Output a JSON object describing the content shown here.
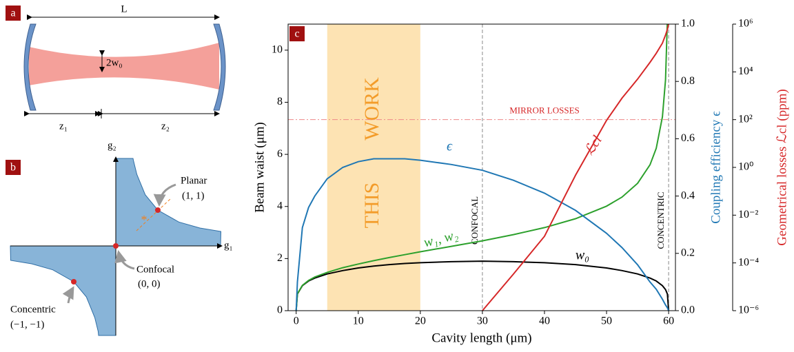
{
  "panel_a": {
    "tag": "a",
    "length_label": "L",
    "waist_label": "2w₀",
    "z1_label": "z₁",
    "z2_label": "z₂"
  },
  "panel_b": {
    "tag": "b",
    "g2_label": "g₂",
    "g1_label": "g₁",
    "planar": "Planar",
    "planar_coords": "(1, 1)",
    "confocal": "Confocal",
    "confocal_coords": "(0, 0)",
    "concentric": "Concentric",
    "concentric_coords": "(−1, −1)"
  },
  "chart_data": {
    "type": "line",
    "tag": "c",
    "xlabel": "Cavity length (μm)",
    "ylabel": "Beam waist (μm)",
    "y2label": "Coupling efficiency ϵ",
    "y3label": "Geometrical losses ℒcl (ppm)",
    "xlim": [
      -1.3,
      61.1
    ],
    "xticks": [
      0,
      10,
      20,
      30,
      40,
      50,
      60
    ],
    "ylim": [
      0,
      11
    ],
    "yticks": [
      0,
      2,
      4,
      6,
      8,
      10
    ],
    "y2lim": [
      0,
      1
    ],
    "y2ticks": [
      {
        "value": 0,
        "label": "0.0"
      },
      {
        "value": 0.2,
        "label": "0.2"
      },
      {
        "value": 0.4,
        "label": "0.4"
      },
      {
        "value": 0.6,
        "label": "0.6"
      },
      {
        "value": 0.8,
        "label": "0.8"
      },
      {
        "value": 1,
        "label": "1.0"
      }
    ],
    "y3lim": [
      1e-06,
      1000000.0
    ],
    "y3scale": "log",
    "y3ticks": [
      {
        "value": 1e-06,
        "label": "10⁻⁶"
      },
      {
        "value": 0.0001,
        "label": "10⁻⁴"
      },
      {
        "value": 0.01,
        "label": "10⁻²"
      },
      {
        "value": 1,
        "label": "10⁰"
      },
      {
        "value": 100,
        "label": "10²"
      },
      {
        "value": 10000,
        "label": "10⁴"
      },
      {
        "value": 1000000,
        "label": "10⁶"
      }
    ],
    "x": [
      0,
      0.2,
      1,
      2,
      3,
      5,
      7.5,
      10,
      12.5,
      15,
      17.5,
      20,
      25,
      30,
      35,
      40,
      45,
      50,
      52.5,
      55,
      57,
      58,
      59,
      59.5,
      59.8,
      60
    ],
    "series": [
      {
        "name": "w₀",
        "color": "#000000",
        "axis": "y",
        "values": [
          0,
          0.64,
          0.96,
          1.14,
          1.25,
          1.41,
          1.54,
          1.64,
          1.71,
          1.77,
          1.81,
          1.84,
          1.88,
          1.9,
          1.88,
          1.84,
          1.77,
          1.64,
          1.54,
          1.41,
          1.25,
          1.14,
          0.96,
          0.81,
          0.64,
          0
        ]
      },
      {
        "name": "w₁, w₂",
        "color": "#2ca02c",
        "axis": "y",
        "values": [
          0,
          0.65,
          0.97,
          1.16,
          1.29,
          1.47,
          1.65,
          1.79,
          1.92,
          2.04,
          2.15,
          2.26,
          2.47,
          2.68,
          2.92,
          3.19,
          3.53,
          4.01,
          4.36,
          4.89,
          5.6,
          6.23,
          7.44,
          8.86,
          11.16,
          null
        ]
      },
      {
        "name": "ϵ",
        "color": "#1f77b4",
        "axis": "y2",
        "values": [
          0,
          0.1,
          0.29,
          0.36,
          0.4,
          0.46,
          0.5,
          0.52,
          0.53,
          0.53,
          0.53,
          0.525,
          0.51,
          0.49,
          0.455,
          0.41,
          0.35,
          0.27,
          0.22,
          0.16,
          0.1,
          0.075,
          0.04,
          0.02,
          0.01,
          0
        ]
      },
      {
        "name": "ℒcl",
        "color": "#d62728",
        "axis": "y3",
        "values": [
          null,
          null,
          null,
          null,
          null,
          null,
          null,
          null,
          null,
          null,
          null,
          null,
          null,
          1e-06,
          3.4e-05,
          0.0013,
          0.47,
          93,
          800,
          5000,
          25000,
          60000,
          160000,
          350000,
          600000,
          1000000
        ]
      }
    ],
    "shaded_region": [
      5,
      20
    ],
    "shaded_text": [
      "WORK",
      "THIS"
    ],
    "vlines": [
      {
        "x": 30,
        "label": "CONFOCAL"
      },
      {
        "x": 60,
        "label": "CONCENTRIC"
      }
    ],
    "hline": {
      "value": 100,
      "axis": "y3",
      "label": "MIRROR LOSSES"
    }
  }
}
